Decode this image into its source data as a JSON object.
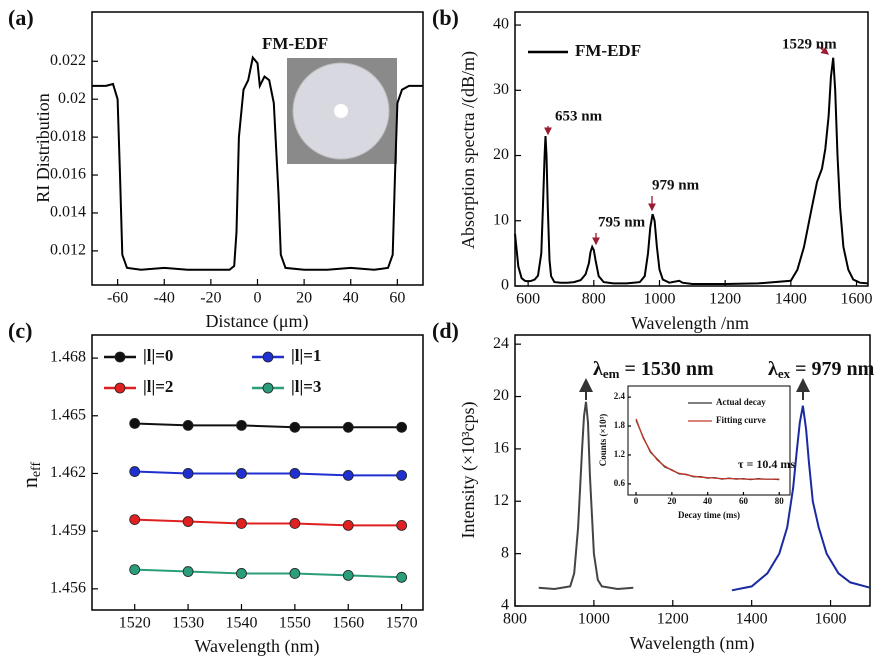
{
  "chart_data": [
    {
      "panel_label": "(a)",
      "type": "line",
      "x_label": "Distance (μm)",
      "y_label": "RI Distribution",
      "xlim": [
        -71,
        71
      ],
      "xticks": [
        -60,
        -40,
        -20,
        0,
        20,
        40,
        60
      ],
      "ylim": [
        0.0102,
        0.0246
      ],
      "yticks": [
        0.012,
        0.014,
        0.016,
        0.018,
        0.02,
        0.022
      ],
      "annotations": [
        "FM-EDF"
      ],
      "series": [
        {
          "color": "#000000",
          "x": [
            -71,
            -65,
            -62,
            -60,
            -59,
            -58,
            -56,
            -50,
            -40,
            -30,
            -20,
            -12,
            -10,
            -9,
            -8,
            -6,
            -4,
            -2,
            0,
            1,
            3,
            5,
            7,
            9,
            10,
            12,
            20,
            30,
            40,
            50,
            56,
            58,
            59,
            60,
            62,
            65,
            71
          ],
          "values": [
            0.0207,
            0.0207,
            0.0208,
            0.02,
            0.016,
            0.0118,
            0.0111,
            0.011,
            0.0111,
            0.011,
            0.011,
            0.011,
            0.0112,
            0.013,
            0.018,
            0.0205,
            0.021,
            0.0222,
            0.0219,
            0.0207,
            0.0212,
            0.021,
            0.0198,
            0.015,
            0.0118,
            0.0111,
            0.011,
            0.011,
            0.0111,
            0.011,
            0.0111,
            0.0118,
            0.016,
            0.0198,
            0.0205,
            0.0207,
            0.0207
          ]
        }
      ]
    },
    {
      "panel_label": "(b)",
      "type": "line",
      "x_label": "Wavelength /nm",
      "y_label": "Absorption spectra /(dB/m)",
      "xlim": [
        560,
        1635
      ],
      "xticks": [
        600,
        800,
        1000,
        1200,
        1400,
        1600
      ],
      "ylim": [
        0,
        42
      ],
      "yticks": [
        0,
        10,
        20,
        30,
        40
      ],
      "annotations": [
        "653 nm",
        "795 nm",
        "979 nm",
        "1529 nm"
      ],
      "annotation_color": "#9b1b30",
      "series": [
        {
          "name": "FM-EDF",
          "color": "#000000",
          "x": [
            560,
            570,
            580,
            590,
            600,
            610,
            620,
            630,
            640,
            645,
            650,
            653,
            656,
            660,
            665,
            670,
            680,
            700,
            720,
            740,
            760,
            775,
            785,
            790,
            795,
            800,
            805,
            815,
            830,
            860,
            900,
            940,
            955,
            965,
            972,
            979,
            985,
            992,
            1000,
            1010,
            1030,
            1060,
            1070,
            1100,
            1200,
            1300,
            1400,
            1420,
            1440,
            1460,
            1480,
            1495,
            1505,
            1515,
            1522,
            1529,
            1535,
            1542,
            1550,
            1560,
            1575,
            1590,
            1610,
            1635
          ],
          "values": [
            8,
            3,
            1.2,
            0.8,
            0.7,
            0.8,
            1.0,
            1.6,
            5,
            12,
            20,
            23,
            20,
            12,
            4,
            1.5,
            0.6,
            0.5,
            0.5,
            0.6,
            0.9,
            1.8,
            3.5,
            5.2,
            6,
            5.5,
            4,
            1.5,
            0.6,
            0.4,
            0.4,
            0.6,
            1.5,
            5,
            9,
            11,
            10,
            6,
            2.5,
            1,
            0.5,
            0.8,
            0.5,
            0.3,
            0.3,
            0.4,
            0.8,
            2.5,
            6,
            11,
            16,
            18,
            21,
            26,
            32,
            35,
            30,
            20,
            12,
            6,
            2.5,
            1,
            0.5,
            0.4
          ]
        }
      ]
    },
    {
      "panel_label": "(c)",
      "type": "line",
      "markers": true,
      "x_label": "Wavelength (nm)",
      "y_label": "n",
      "y_label_subscript": "eff",
      "xlim": [
        1512,
        1574
      ],
      "xticks": [
        1520,
        1530,
        1540,
        1550,
        1560,
        1570
      ],
      "ylim": [
        1.4549,
        1.4692
      ],
      "yticks": [
        1.456,
        1.459,
        1.462,
        1.465,
        1.468
      ],
      "x": [
        1520,
        1530,
        1540,
        1550,
        1560,
        1570
      ],
      "series": [
        {
          "name": "|l|=0",
          "color": "#111111",
          "values": [
            1.4646,
            1.4645,
            1.4645,
            1.4644,
            1.4644,
            1.4644
          ]
        },
        {
          "name": "|l|=1",
          "color": "#1f2fd0",
          "values": [
            1.4621,
            1.462,
            1.462,
            1.462,
            1.4619,
            1.4619
          ]
        },
        {
          "name": "|l|=2",
          "color": "#e02020",
          "values": [
            1.4596,
            1.4595,
            1.4594,
            1.4594,
            1.4593,
            1.4593
          ]
        },
        {
          "name": "|l|=3",
          "color": "#2a9d7a",
          "values": [
            1.457,
            1.4569,
            1.4568,
            1.4568,
            1.4567,
            1.4566
          ]
        }
      ]
    },
    {
      "panel_label": "(d)",
      "type": "line",
      "x_label": "Wavelength (nm)",
      "y_label": "Intensity (×10³cps)",
      "xlim": [
        800,
        1700
      ],
      "xticks": [
        800,
        1000,
        1200,
        1400,
        1600
      ],
      "ylim": [
        4,
        24.7
      ],
      "yticks": [
        4,
        8,
        12,
        16,
        20,
        24
      ],
      "annotations": [
        {
          "symbol": "λ",
          "subscript": "em",
          "text": " = 1530 nm",
          "color": "#2c3e80"
        },
        {
          "symbol": "λ",
          "subscript": "ex",
          "text": " = 979 nm",
          "color": "#333333"
        }
      ],
      "series": [
        {
          "color": "#444444",
          "x": [
            860,
            900,
            940,
            950,
            960,
            970,
            975,
            980,
            985,
            990,
            1000,
            1010,
            1020,
            1060,
            1100
          ],
          "values": [
            5.4,
            5.3,
            5.5,
            6.5,
            10,
            16,
            18.5,
            19.6,
            18,
            14,
            8,
            6,
            5.5,
            5.3,
            5.4
          ]
        },
        {
          "color": "#1a2aa0",
          "x": [
            1350,
            1400,
            1440,
            1470,
            1490,
            1505,
            1515,
            1522,
            1530,
            1538,
            1545,
            1555,
            1570,
            1590,
            1620,
            1650,
            1700
          ],
          "values": [
            5.2,
            5.5,
            6.5,
            8,
            10,
            13,
            16,
            18,
            19.3,
            17.5,
            15,
            12,
            10,
            8,
            6.5,
            5.8,
            5.4
          ]
        }
      ]
    },
    {
      "type": "line",
      "x_label": "Decay time (ms)",
      "y_label": "Counts (×10³)",
      "xlim": [
        -4.5,
        86
      ],
      "xticks": [
        0,
        20,
        40,
        60,
        80
      ],
      "ylim": [
        0.37,
        2.63
      ],
      "yticks": [
        0.6,
        1.2,
        1.8,
        2.4
      ],
      "annotations": [
        "τ = 10.4 ms"
      ],
      "annotation_color": "#b02020",
      "x": [
        0,
        4,
        8,
        12,
        16,
        20,
        24,
        28,
        32,
        36,
        40,
        44,
        48,
        52,
        56,
        60,
        64,
        68,
        72,
        76,
        80
      ],
      "series": [
        {
          "name": "Actual decay",
          "color": "#333333",
          "values": [
            1.92,
            1.57,
            1.26,
            1.11,
            0.95,
            0.89,
            0.81,
            0.8,
            0.75,
            0.75,
            0.72,
            0.73,
            0.7,
            0.72,
            0.7,
            0.71,
            0.69,
            0.71,
            0.7,
            0.7,
            0.69
          ]
        },
        {
          "name": "Fitting curve",
          "color": "#c0392b",
          "values": [
            1.95,
            1.55,
            1.28,
            1.09,
            0.97,
            0.88,
            0.82,
            0.79,
            0.76,
            0.74,
            0.73,
            0.72,
            0.71,
            0.71,
            0.71,
            0.7,
            0.7,
            0.7,
            0.7,
            0.7,
            0.7
          ]
        }
      ]
    }
  ]
}
